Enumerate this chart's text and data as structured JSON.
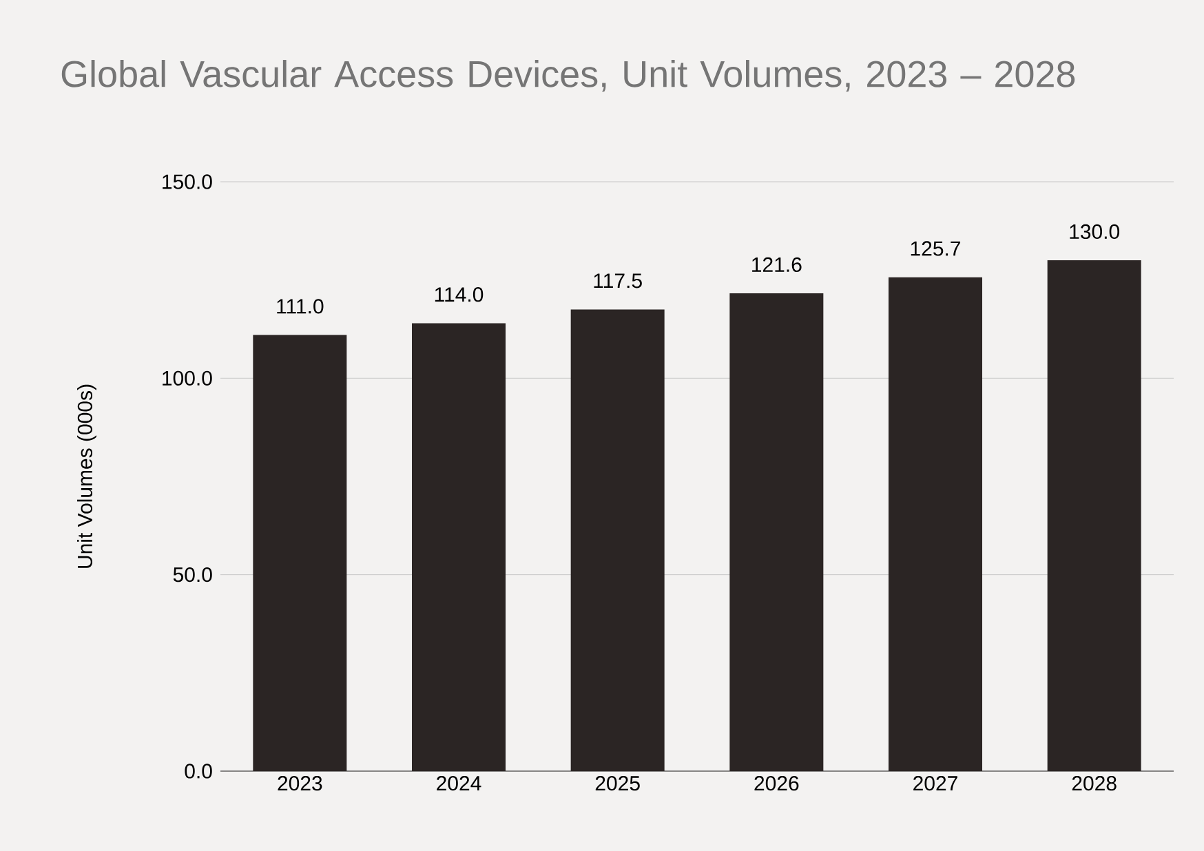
{
  "chart_data": {
    "type": "bar",
    "title": "Global Vascular Access Devices, Unit Volumes, 2023 – 2028",
    "ylabel": "Unit Volumes (000s)",
    "categories": [
      "2023",
      "2024",
      "2025",
      "2026",
      "2027",
      "2028"
    ],
    "values": [
      111.0,
      114.0,
      117.5,
      121.6,
      125.7,
      130.0
    ],
    "value_labels": [
      "111.0",
      "114.0",
      "117.5",
      "121.6",
      "125.7",
      "130.0"
    ],
    "color": "#2b2524",
    "ylim": [
      0,
      150
    ],
    "yticks": [
      {
        "value": 0,
        "label": "0.0"
      },
      {
        "value": 50,
        "label": "50.0"
      },
      {
        "value": 100,
        "label": "100.0"
      },
      {
        "value": 150,
        "label": "150.0"
      }
    ],
    "grid": "y"
  }
}
